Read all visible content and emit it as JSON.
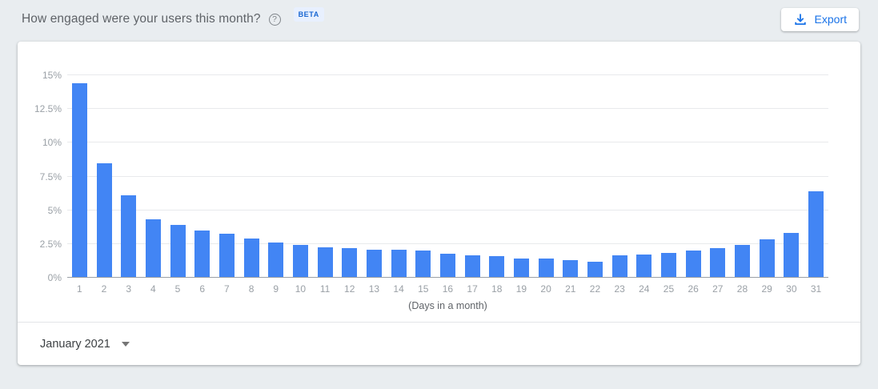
{
  "header": {
    "title": "How engaged were your users this month?",
    "help_icon": "help-circle-icon",
    "beta_badge": "BETA",
    "export": {
      "label": "Export",
      "icon": "download-icon"
    }
  },
  "chart_data": {
    "type": "bar",
    "title": "How engaged were your users this month?",
    "categories": [
      "1",
      "2",
      "3",
      "4",
      "5",
      "6",
      "7",
      "8",
      "9",
      "10",
      "11",
      "12",
      "13",
      "14",
      "15",
      "16",
      "17",
      "18",
      "19",
      "20",
      "21",
      "22",
      "23",
      "24",
      "25",
      "26",
      "27",
      "28",
      "29",
      "30",
      "31"
    ],
    "values": [
      14.4,
      8.5,
      6.1,
      4.3,
      3.9,
      3.5,
      3.25,
      2.9,
      2.6,
      2.45,
      2.25,
      2.2,
      2.1,
      2.05,
      2.0,
      1.8,
      1.65,
      1.6,
      1.45,
      1.4,
      1.3,
      1.2,
      1.65,
      1.7,
      1.85,
      2.0,
      2.2,
      2.45,
      2.85,
      3.35,
      6.4
    ],
    "xlabel": "(Days in a month)",
    "ylabel": "",
    "ylim": [
      0,
      15
    ],
    "yticks": [
      0,
      2.5,
      5,
      7.5,
      10,
      12.5,
      15
    ],
    "ytick_labels": [
      "0%",
      "2.5%",
      "5%",
      "7.5%",
      "10%",
      "12.5%",
      "15%"
    ],
    "grid": true,
    "legend": false,
    "bar_color": "#4285f4"
  },
  "footer": {
    "period_selector": "January 2021",
    "dropdown_icon": "triangle-down-icon"
  },
  "colors": {
    "accent_blue": "#1a73e8",
    "bar_blue": "#4285f4",
    "beta_bg": "#e8f0fe",
    "beta_text": "#1967d2",
    "page_bg": "#e9edf0",
    "card_bg": "#ffffff",
    "gridline": "#e8eaec",
    "axis_line": "#9aa0a6",
    "tick_text": "#9aa0a6",
    "title_text": "#5f6368"
  }
}
